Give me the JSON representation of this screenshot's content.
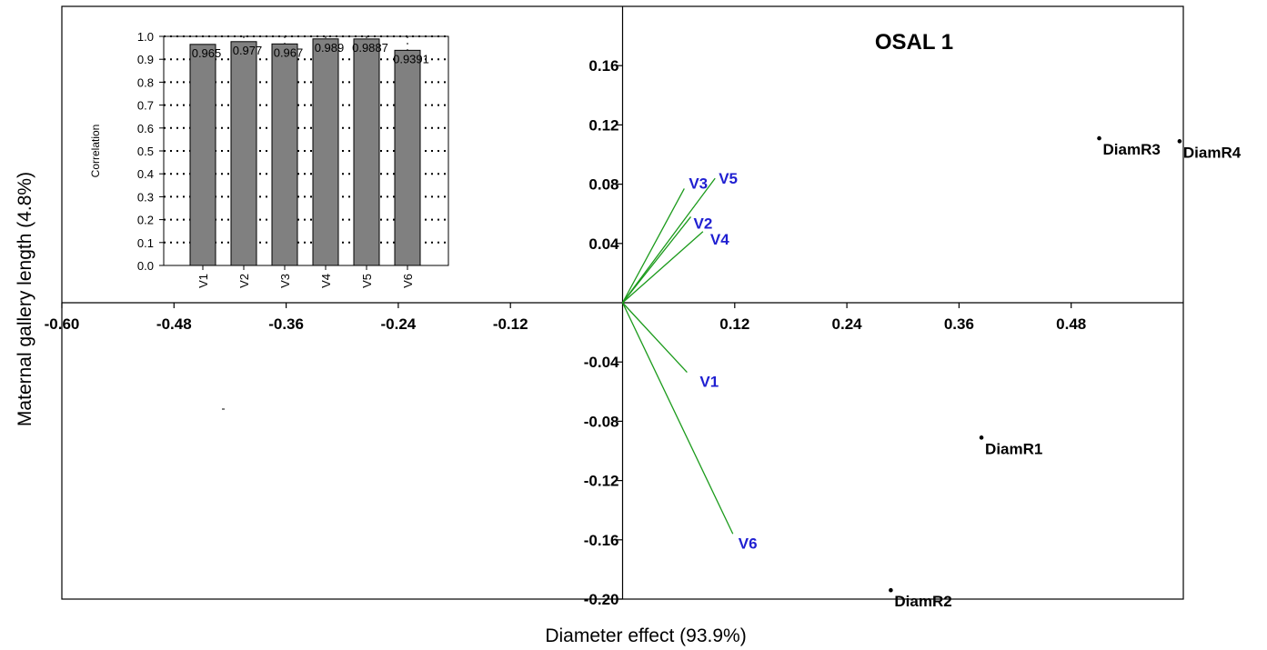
{
  "chart_data": [
    {
      "type": "scatter",
      "title": "OSAL 1",
      "xlabel": "Diameter effect (93.9%)",
      "ylabel": "Maternal gallery length (4.8%)",
      "xlim": [
        -0.6,
        0.6
      ],
      "ylim": [
        -0.2,
        0.2
      ],
      "x_ticks": [
        "-0.60",
        "-0.48",
        "-0.36",
        "-0.24",
        "-0.12",
        "0.12",
        "0.24",
        "0.36",
        "0.48"
      ],
      "x_tick_values": [
        -0.6,
        -0.48,
        -0.36,
        -0.24,
        -0.12,
        0.12,
        0.24,
        0.36,
        0.48
      ],
      "y_ticks": [
        "0.16",
        "0.12",
        "0.08",
        "0.04",
        "-0.04",
        "-0.08",
        "-0.12",
        "-0.16",
        "-0.20"
      ],
      "y_tick_values": [
        0.16,
        0.12,
        0.08,
        0.04,
        -0.04,
        -0.08,
        -0.12,
        -0.16,
        -0.2
      ],
      "points": [
        {
          "label": "DiamR1",
          "x": 0.384,
          "y": -0.091
        },
        {
          "label": "DiamR2",
          "x": 0.287,
          "y": -0.194
        },
        {
          "label": "DiamR3",
          "x": 0.51,
          "y": 0.111
        },
        {
          "label": "DiamR4",
          "x": 0.596,
          "y": 0.109
        }
      ],
      "vectors": [
        {
          "label": "V1",
          "x": 0.069,
          "y": -0.047
        },
        {
          "label": "V2",
          "x": 0.073,
          "y": 0.058
        },
        {
          "label": "V3",
          "x": 0.066,
          "y": 0.077
        },
        {
          "label": "V4",
          "x": 0.086,
          "y": 0.048
        },
        {
          "label": "V5",
          "x": 0.099,
          "y": 0.084
        },
        {
          "label": "V6",
          "x": 0.118,
          "y": -0.156
        }
      ],
      "colors": {
        "vectors": "#1a9a1a",
        "vector_labels": "#1f1fd1",
        "points": "#000000"
      }
    },
    {
      "type": "bar",
      "ylabel": "Correlation",
      "ylim": [
        0,
        1.0
      ],
      "y_ticks": [
        "0.0",
        "0.1",
        "0.2",
        "0.3",
        "0.4",
        "0.5",
        "0.6",
        "0.7",
        "0.8",
        "0.9",
        "1.0"
      ],
      "grid": true,
      "categories": [
        "V1",
        "V2",
        "V3",
        "V4",
        "V5",
        "V6"
      ],
      "values": [
        0.965,
        0.977,
        0.967,
        0.989,
        0.9887,
        0.9391
      ],
      "value_labels": [
        "0.965",
        "0.977",
        "0.967",
        "0.989",
        "0.9887",
        "0.9391"
      ],
      "colors": {
        "bars": "#808080",
        "bar_edge": "#000000"
      }
    }
  ]
}
